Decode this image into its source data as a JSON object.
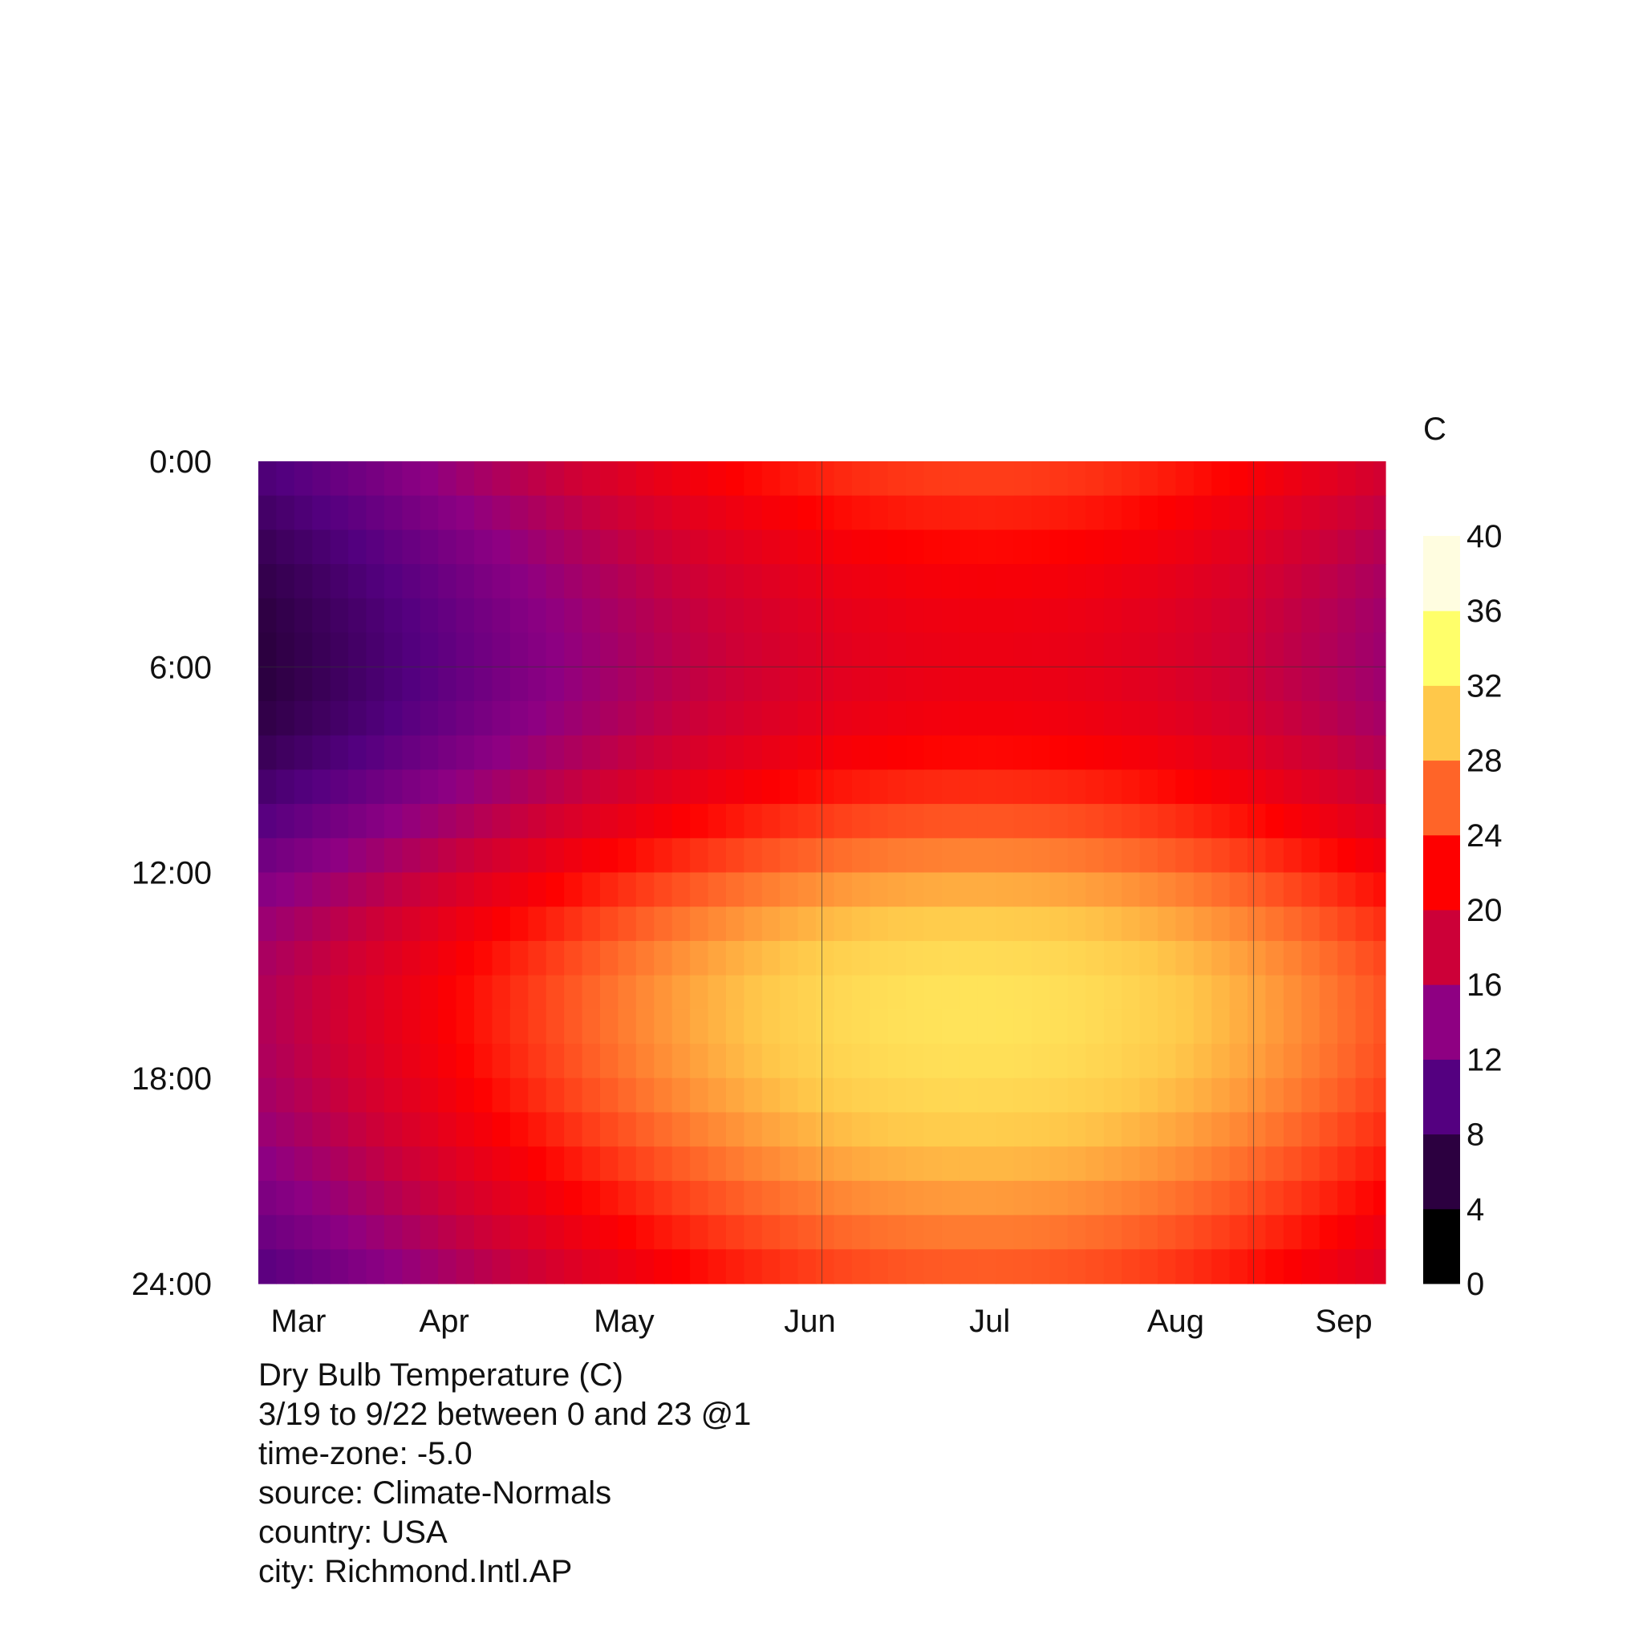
{
  "chart_data": {
    "type": "heatmap",
    "title": "Dry Bulb Temperature (C)",
    "subtitle_lines": [
      "3/19 to 9/22 between 0 and 23 @1",
      "time-zone: -5.0",
      "source: Climate-Normals",
      "country: USA",
      "city: Richmond.Intl.AP"
    ],
    "unit_label": "C",
    "x_date_range": [
      "3/19",
      "9/22"
    ],
    "x_tick_labels": [
      "Mar",
      "Apr",
      "May",
      "Jun",
      "Jul",
      "Aug",
      "Sep"
    ],
    "x_tick_dates": [
      "3/19",
      "4/19",
      "5/19",
      "6/19",
      "7/19",
      "8/19",
      "9/19"
    ],
    "y_tick_labels": [
      "0:00",
      "6:00",
      "12:00",
      "18:00",
      "24:00"
    ],
    "y_tick_hours": [
      0,
      6,
      12,
      18,
      24
    ],
    "hours": [
      0,
      1,
      2,
      3,
      4,
      5,
      6,
      7,
      8,
      9,
      10,
      11,
      12,
      13,
      14,
      15,
      16,
      17,
      18,
      19,
      20,
      21,
      22,
      23
    ],
    "gridlines": {
      "hours": [
        6
      ],
      "dates": [
        "6/21",
        "9/1"
      ]
    },
    "legend": {
      "position": "right",
      "tick_labels": [
        "0",
        "4",
        "8",
        "12",
        "16",
        "20",
        "24",
        "28",
        "32",
        "36",
        "40"
      ],
      "range": [
        0,
        40
      ],
      "step": 4
    },
    "color_scale": [
      "#000000",
      "#2c0040",
      "#540080",
      "#8e0082",
      "#cc0038",
      "#fe0000",
      "#ff6428",
      "#ffc84a",
      "#ffff6a",
      "#fffde0"
    ],
    "profile_model": {
      "note_daily_mean_by_month": {
        "Mar": 9,
        "Apr": 14,
        "May": 19,
        "Jun": 24,
        "Jul": 26,
        "Aug": 25,
        "Sep": 21
      },
      "daily_min_hour": 6,
      "daily_max_hour": 16
    }
  },
  "info": {
    "title": "Dry Bulb Temperature (C)",
    "date_range": "3/19 to 9/22 between 0 and 23 @1",
    "timezone": "time-zone: -5.0",
    "source": "source: Climate-Normals",
    "country": "country: USA",
    "city": "city: Richmond.Intl.AP"
  }
}
